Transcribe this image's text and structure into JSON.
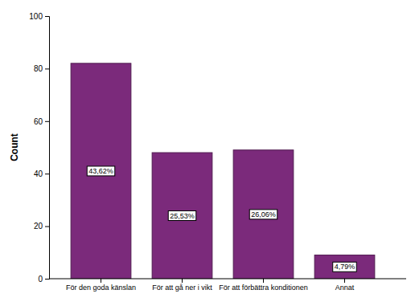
{
  "chart_data": {
    "type": "bar",
    "y_label": "Count",
    "categories": [
      "För den goda känslan",
      "För att gå ner i vikt",
      "För att förbättra konditionen",
      "Annat"
    ],
    "values": [
      82,
      48,
      49,
      9
    ],
    "percent": [
      43.62,
      25.53,
      26.06,
      4.79
    ],
    "percent_labels": [
      "43,62%",
      "25,53%",
      "26,06%",
      "4,79%"
    ],
    "color": "#7b2a7b",
    "ylim": [
      0,
      100
    ],
    "yticks": [
      0,
      20,
      40,
      60,
      80,
      100
    ],
    "grid": false
  }
}
